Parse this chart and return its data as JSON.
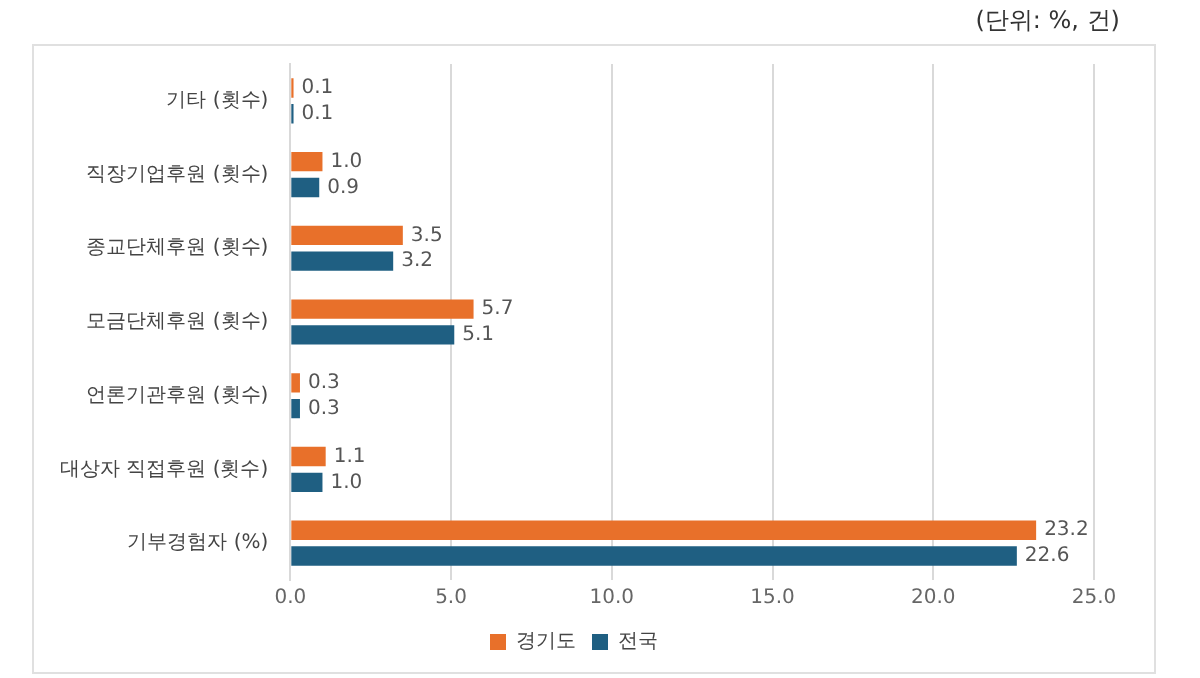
{
  "chart_data": {
    "type": "bar",
    "orientation": "horizontal",
    "categories": [
      "기타 (횟수)",
      "직장기업후원 (횟수)",
      "종교단체후원 (횟수)",
      "모금단체후원 (횟수)",
      "언론기관후원 (횟수)",
      "대상자 직접후원 (횟수)",
      "기부경험자 (%)"
    ],
    "series": [
      {
        "name": "경기도",
        "color": "#e8702a",
        "values": [
          0.1,
          1.0,
          3.5,
          5.7,
          0.3,
          1.1,
          23.2
        ],
        "value_labels": [
          "0.1",
          "1.0",
          "3.5",
          "5.7",
          "0.3",
          "1.1",
          "23.2"
        ]
      },
      {
        "name": "전국",
        "color": "#1f5f82",
        "values": [
          0.1,
          0.9,
          3.2,
          5.1,
          0.3,
          1.0,
          22.6
        ],
        "value_labels": [
          "0.1",
          "0.9",
          "3.2",
          "5.1",
          "0.3",
          "1.0",
          "22.6"
        ]
      }
    ],
    "xlim": [
      0,
      25
    ],
    "xticks": [
      {
        "value": 0,
        "label": "0.0"
      },
      {
        "value": 5,
        "label": "5.0"
      },
      {
        "value": 10,
        "label": "10.0"
      },
      {
        "value": 15,
        "label": "15.0"
      },
      {
        "value": 20,
        "label": "20.0"
      },
      {
        "value": 25,
        "label": "25.0"
      }
    ],
    "grid": "x",
    "legend": "bottom",
    "annotations": [
      "(단위: %, 건)"
    ]
  }
}
